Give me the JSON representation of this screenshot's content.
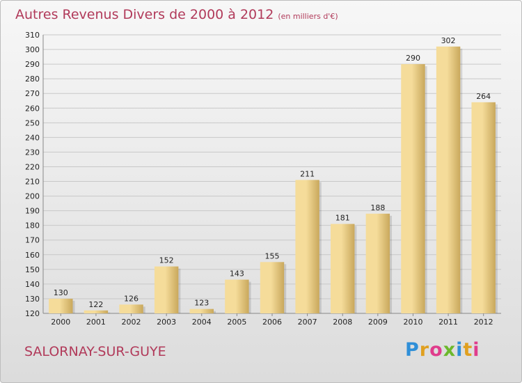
{
  "header": {
    "title": "Autres Revenus Divers de 2000 à 2012",
    "unit": "(en milliers d'€)"
  },
  "footer": {
    "place": "SALORNAY-SUR-GUYE",
    "brand": [
      "P",
      "r",
      "o",
      "x",
      "i",
      "t",
      "i"
    ],
    "brand_colors": [
      "#2f8fd8",
      "#e0a020",
      "#e03c8c",
      "#6cb82c",
      "#2f8fd8",
      "#e0a020",
      "#e03c8c"
    ]
  },
  "chart_data": {
    "type": "bar",
    "title": "Autres Revenus Divers de 2000 à 2012",
    "subtitle": "(en milliers d'€)",
    "categories": [
      "2000",
      "2001",
      "2002",
      "2003",
      "2004",
      "2005",
      "2006",
      "2007",
      "2008",
      "2009",
      "2010",
      "2011",
      "2012"
    ],
    "values": [
      130,
      122,
      126,
      152,
      123,
      143,
      155,
      211,
      181,
      188,
      290,
      302,
      264
    ],
    "ylim": [
      120,
      310
    ],
    "yticks": [
      120,
      130,
      140,
      150,
      160,
      170,
      180,
      190,
      200,
      210,
      220,
      230,
      240,
      250,
      260,
      270,
      280,
      290,
      300,
      310
    ],
    "grid": true,
    "bar_color_light": "#f5dc9a",
    "bar_color_dark": "#c9a85c",
    "title_color": "#b13a5a"
  }
}
